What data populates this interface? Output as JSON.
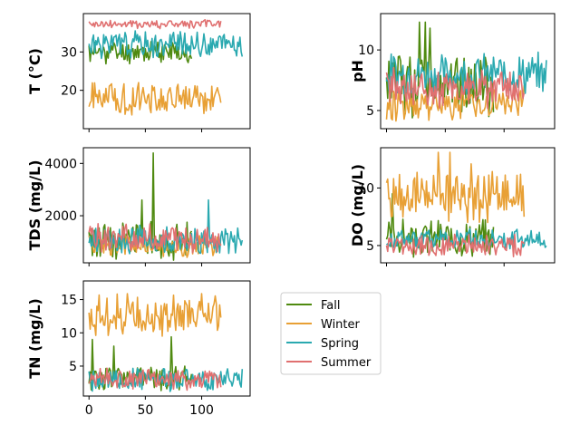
{
  "colors": {
    "Fall": "#4f8a10",
    "Winter": "#e8a035",
    "Spring": "#2aa9b0",
    "Summer": "#e07070"
  },
  "legend": [
    "Fall",
    "Winter",
    "Spring",
    "Summer"
  ],
  "chart_data": [
    {
      "type": "line",
      "ylabel": "T  (°C)",
      "xlim": [
        -5,
        143
      ],
      "ylim": [
        10,
        40
      ],
      "yticks": [
        20,
        30
      ],
      "xticks": [
        0,
        50,
        100
      ],
      "show_x_tick_labels": false,
      "series": [
        {
          "name": "Fall",
          "length": 92,
          "base": 30,
          "amp": 2.5,
          "seed": 11
        },
        {
          "name": "Winter",
          "length": 118,
          "base": 18,
          "amp": 3.5,
          "seed": 21
        },
        {
          "name": "Spring",
          "length": 137,
          "base": 32,
          "amp": 3.0,
          "seed": 31
        },
        {
          "name": "Summer",
          "length": 118,
          "base": 37.2,
          "amp": 1.0,
          "seed": 41
        }
      ]
    },
    {
      "type": "line",
      "ylabel": "pH",
      "xlim": [
        -5,
        143
      ],
      "ylim": [
        3.5,
        13
      ],
      "yticks": [
        5,
        10
      ],
      "xticks": [
        0,
        50,
        100
      ],
      "show_x_tick_labels": false,
      "series": [
        {
          "name": "Fall",
          "length": 92,
          "base": 7.3,
          "amp": 2.2,
          "seed": 12,
          "spikes": [
            [
              28,
              12.3
            ],
            [
              33,
              12.3
            ],
            [
              37,
              11.8
            ],
            [
              22,
              4.4
            ]
          ]
        },
        {
          "name": "Winter",
          "length": 118,
          "base": 5.6,
          "amp": 1.2,
          "seed": 22
        },
        {
          "name": "Spring",
          "length": 137,
          "base": 8.0,
          "amp": 1.4,
          "seed": 32
        },
        {
          "name": "Summer",
          "length": 118,
          "base": 6.8,
          "amp": 1.4,
          "seed": 42
        }
      ]
    },
    {
      "type": "line",
      "ylabel": "TDS (mg/L)",
      "xlim": [
        -5,
        143
      ],
      "ylim": [
        200,
        4600
      ],
      "yticks": [
        2000,
        4000
      ],
      "xticks": [
        0,
        50,
        100
      ],
      "show_x_tick_labels": false,
      "series": [
        {
          "name": "Fall",
          "length": 92,
          "base": 1100,
          "amp": 650,
          "seed": 13,
          "spikes": [
            [
              57,
              4400
            ],
            [
              47,
              2600
            ]
          ]
        },
        {
          "name": "Winter",
          "length": 118,
          "base": 850,
          "amp": 350,
          "seed": 23
        },
        {
          "name": "Spring",
          "length": 137,
          "base": 1050,
          "amp": 450,
          "seed": 33,
          "spikes": [
            [
              106,
              2600
            ]
          ]
        },
        {
          "name": "Summer",
          "length": 118,
          "base": 1150,
          "amp": 450,
          "seed": 43
        }
      ]
    },
    {
      "type": "line",
      "ylabel": "DO (mg/L)",
      "xlim": [
        -5,
        143
      ],
      "ylim": [
        3.5,
        13.5
      ],
      "yticks": [
        5,
        10
      ],
      "xticks": [
        0,
        50,
        100
      ],
      "show_x_tick_labels": false,
      "series": [
        {
          "name": "Fall",
          "length": 92,
          "base": 5.6,
          "amp": 1.3,
          "seed": 14,
          "spikes": [
            [
              5,
              9.5
            ]
          ]
        },
        {
          "name": "Winter",
          "length": 118,
          "base": 9.3,
          "amp": 1.8,
          "seed": 24,
          "spikes": [
            [
              44,
              13.1
            ],
            [
              54,
              13.1
            ],
            [
              72,
              12.1
            ]
          ]
        },
        {
          "name": "Spring",
          "length": 137,
          "base": 5.6,
          "amp": 0.8,
          "seed": 34
        },
        {
          "name": "Summer",
          "length": 118,
          "base": 5.0,
          "amp": 0.8,
          "seed": 44
        }
      ]
    },
    {
      "type": "line",
      "ylabel": "TN (mg/L)",
      "xlim": [
        -5,
        143
      ],
      "ylim": [
        0.5,
        17.8
      ],
      "yticks": [
        5,
        10,
        15
      ],
      "xticks": [
        0,
        50,
        100
      ],
      "show_x_tick_labels": true,
      "series": [
        {
          "name": "Fall",
          "length": 92,
          "base": 3.2,
          "amp": 1.6,
          "seed": 15,
          "spikes": [
            [
              3,
              9.0
            ],
            [
              22,
              8.0
            ],
            [
              73,
              9.4
            ]
          ]
        },
        {
          "name": "Winter",
          "length": 118,
          "base": 12.6,
          "amp": 2.6,
          "seed": 25
        },
        {
          "name": "Spring",
          "length": 137,
          "base": 3.0,
          "amp": 1.4,
          "seed": 35
        },
        {
          "name": "Summer",
          "length": 118,
          "base": 3.0,
          "amp": 1.3,
          "seed": 45
        }
      ]
    }
  ]
}
